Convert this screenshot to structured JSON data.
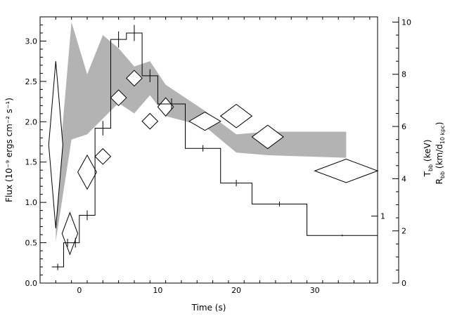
{
  "chart_data": {
    "type": "line",
    "title": "",
    "xlabel": "Time (s)",
    "ylabel_left": "Flux (10⁻⁹ ergs cm⁻² s⁻¹)",
    "ylabel_right_top": "T_bb (keV)",
    "ylabel_right_bottom": "R_bb (km/d_10 kpc)",
    "xlim": [
      -5,
      38
    ],
    "ylim_left": [
      0,
      3.3
    ],
    "ylim_right": [
      0,
      10.2
    ],
    "x_ticks": [
      0,
      10,
      20,
      30
    ],
    "x_tick_labels": [
      "0",
      "10",
      "20",
      "30"
    ],
    "y_left_ticks": [
      0.0,
      0.5,
      1.0,
      1.5,
      2.0,
      2.5,
      3.0
    ],
    "y_left_tick_labels": [
      "0.0",
      "0.5",
      "1.0",
      "1.5",
      "2.0",
      "2.5",
      "3.0"
    ],
    "y_right_ticks": [
      0,
      2,
      4,
      6,
      8,
      10
    ],
    "y_right_tick_labels": [
      "0",
      "2",
      "4",
      "6",
      "8",
      "10"
    ],
    "extra_right_tick": {
      "value": 0.83,
      "label": "1"
    },
    "grid": false,
    "series": [
      {
        "kind": "step-histogram",
        "edges": [
          -3.5,
          -2,
          -1,
          0,
          2,
          4,
          6,
          8,
          10,
          13.5,
          18,
          22,
          29,
          38
        ],
        "values": [
          0.2,
          0.5,
          0.5,
          0.84,
          1.92,
          3.02,
          3.1,
          2.57,
          2.22,
          1.67,
          1.24,
          0.98,
          0.59
        ],
        "errors": [
          0.04,
          0.05,
          0.06,
          0.06,
          0.09,
          0.1,
          0.1,
          0.08,
          0.07,
          0.04,
          0.04,
          0.03,
          0.01
        ]
      },
      {
        "kind": "diamonds",
        "axis": "right",
        "points": [
          {
            "x": -3.0,
            "y": 5.3,
            "dx": 0.9,
            "dy": 3.2
          },
          {
            "x": -1.2,
            "y": 1.9,
            "dx": 1.0,
            "dy": 0.8
          },
          {
            "x": 1.0,
            "y": 4.25,
            "dx": 1.2,
            "dy": 0.65
          },
          {
            "x": 3.0,
            "y": 4.85,
            "dx": 1.0,
            "dy": 0.3
          },
          {
            "x": 5.0,
            "y": 7.1,
            "dx": 1.0,
            "dy": 0.3
          },
          {
            "x": 7.0,
            "y": 7.85,
            "dx": 1.0,
            "dy": 0.3
          },
          {
            "x": 9.0,
            "y": 6.2,
            "dx": 1.0,
            "dy": 0.3
          },
          {
            "x": 11.0,
            "y": 6.75,
            "dx": 1.0,
            "dy": 0.35
          },
          {
            "x": 16.0,
            "y": 6.2,
            "dx": 2.0,
            "dy": 0.35
          },
          {
            "x": 20.0,
            "y": 6.4,
            "dx": 2.0,
            "dy": 0.45
          },
          {
            "x": 24.0,
            "y": 5.6,
            "dx": 2.0,
            "dy": 0.45
          },
          {
            "x": 34.0,
            "y": 4.3,
            "dx": 4.0,
            "dy": 0.45
          }
        ]
      },
      {
        "kind": "band",
        "axis": "right",
        "color": "#b3b3b3",
        "x": [
          -3,
          -1,
          1,
          3,
          5,
          7,
          9,
          11,
          16,
          20,
          24,
          34
        ],
        "low": [
          1.6,
          5.5,
          5.7,
          6.3,
          6.9,
          6.5,
          7.2,
          6.4,
          6.0,
          5.0,
          4.9,
          4.8
        ],
        "high": [
          3.0,
          10.0,
          8.0,
          9.5,
          9.0,
          8.3,
          8.5,
          7.6,
          6.6,
          5.7,
          5.8,
          5.8
        ]
      }
    ]
  }
}
